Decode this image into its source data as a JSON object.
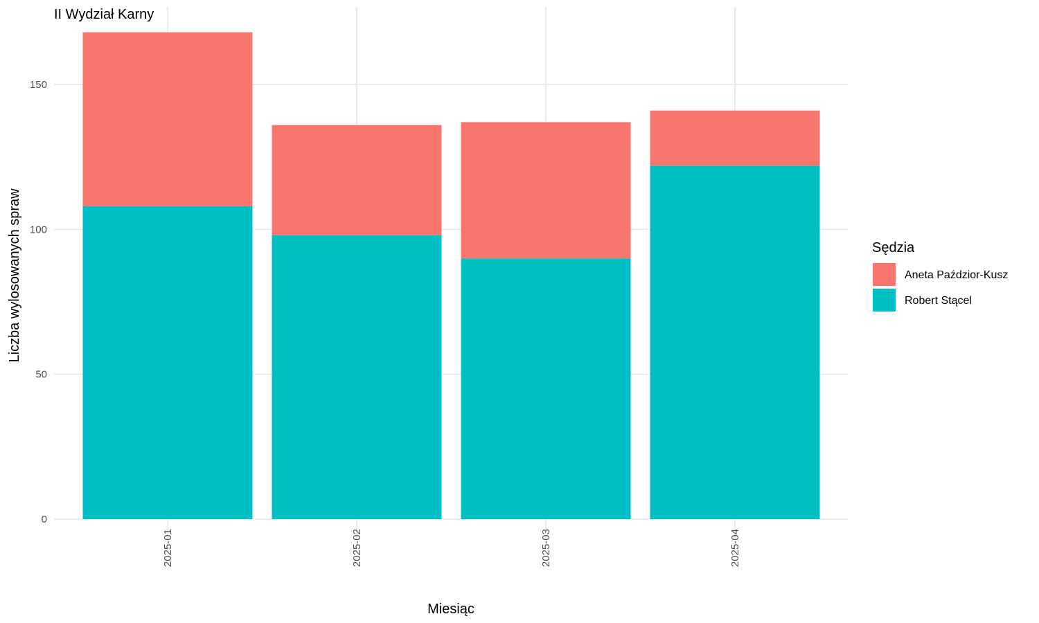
{
  "chart_data": {
    "type": "bar",
    "stacked": true,
    "title": "II Wydział Karny",
    "xlabel": "Miesiąc",
    "ylabel": "Liczba wylosowanych spraw",
    "categories": [
      "2025-01",
      "2025-02",
      "2025-03",
      "2025-04"
    ],
    "series": [
      {
        "name": "Robert Stącel",
        "color": "#00BFC4",
        "values": [
          108,
          98,
          90,
          122
        ]
      },
      {
        "name": "Aneta Paździor-Kusz",
        "color": "#F8766D",
        "values": [
          60,
          38,
          47,
          19
        ]
      }
    ],
    "yticks": [
      0,
      50,
      100,
      150
    ],
    "ylim": [
      0,
      176
    ],
    "grid": true,
    "legend": {
      "title": "Sędzia",
      "position": "right",
      "order": [
        "Aneta Paździor-Kusz",
        "Robert Stącel"
      ]
    }
  }
}
